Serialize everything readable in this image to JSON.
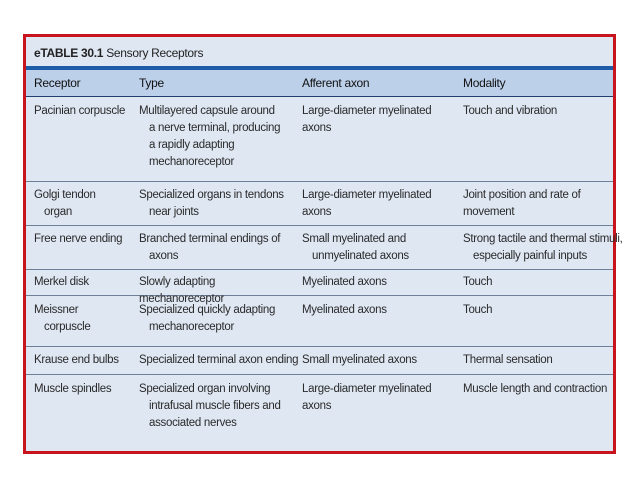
{
  "table": {
    "label": "eTABLE 30.1",
    "title": "Sensory Receptors",
    "headers": [
      "Receptor",
      "Type",
      "Afferent axon",
      "Modality"
    ],
    "rows": [
      [
        "Pacinian corpuscle",
        "Multilayered capsule around a nerve terminal, producing a rapidly adapting mechanoreceptor",
        "Large-diameter myelinated axons",
        "Touch and vibration"
      ],
      [
        "Golgi tendon organ",
        "Specialized organs in tendons near joints",
        "Large-diameter myelinated axons",
        "Joint position and rate of movement"
      ],
      [
        "Free nerve ending",
        "Branched terminal endings of axons",
        "Small myelinated and unmyelinated axons",
        "Strong tactile and thermal stimuli, especially painful inputs"
      ],
      [
        "Merkel disk",
        "Slowly adapting mechanoreceptor",
        "Myelinated axons",
        "Touch"
      ],
      [
        "Meissner corpuscle",
        "Specialized quickly adapting mechanoreceptor",
        "Myelinated axons",
        "Touch"
      ],
      [
        "Krause end bulbs",
        "Specialized terminal axon ending",
        "Small myelinated axons",
        "Thermal sensation"
      ],
      [
        "Muscle spindles",
        "Specialized organ involving intrafusal muscle fibers and associated nerves",
        "Large-diameter myelinated axons",
        "Muscle length and contraction"
      ]
    ]
  }
}
